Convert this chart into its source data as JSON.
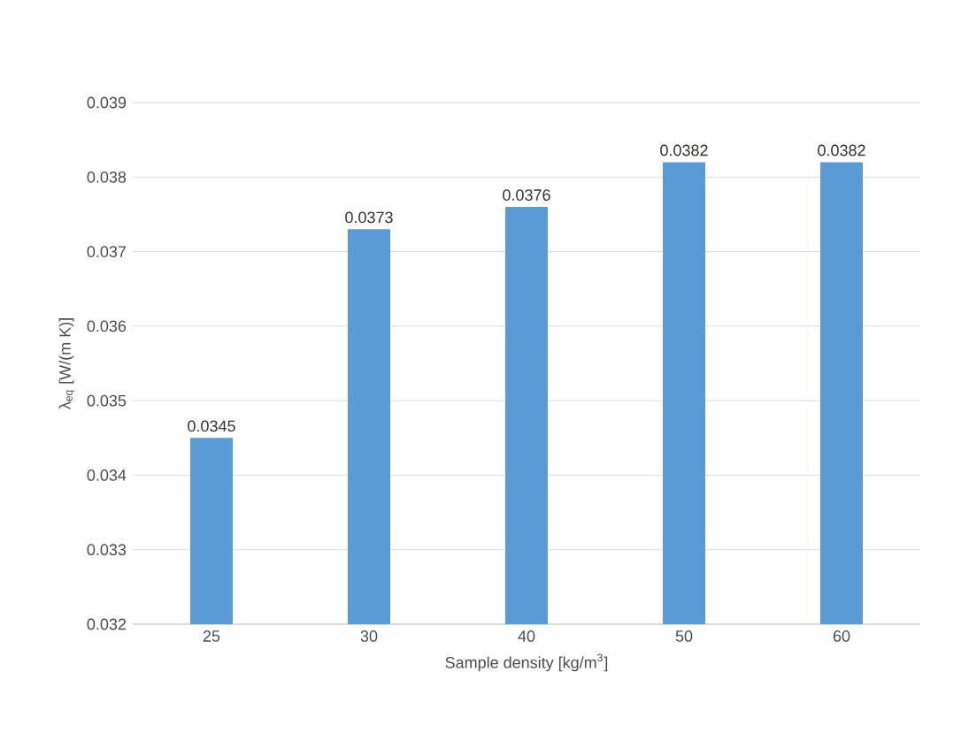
{
  "chart_data": {
    "type": "bar",
    "xlabel": "Sample density [kg/m$^{3}$]",
    "ylabel": "λ$_{eq}$ [W/(m K)]",
    "categories": [
      "25",
      "30",
      "40",
      "50",
      "60"
    ],
    "values": [
      0.0345,
      0.0373,
      0.0376,
      0.0382,
      0.0382
    ],
    "color": "#5b9bd5",
    "ylim": [
      0.032,
      0.039
    ],
    "yticks": [
      0.032,
      0.033,
      0.034,
      0.035,
      0.036,
      0.037,
      0.038,
      0.039
    ],
    "grid": "y",
    "data_labels": true
  }
}
